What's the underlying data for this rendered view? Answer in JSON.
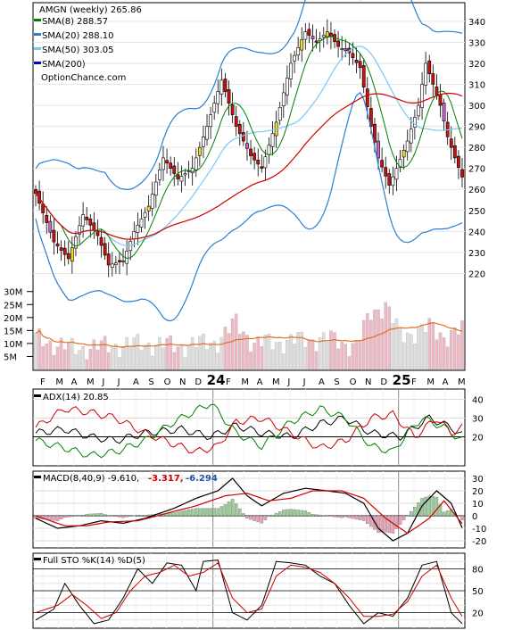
{
  "chart_data": [
    {
      "panel": "price",
      "type": "candlestick",
      "title": "AMGN (weekly) 265.86",
      "source_label": "OptionChance.com",
      "legend_placement": "top-left",
      "ylim": [
        210,
        348
      ],
      "y_ticks": [
        220,
        230,
        240,
        250,
        260,
        270,
        280,
        290,
        300,
        310,
        320,
        330,
        340
      ],
      "x_labels": [
        "F",
        "M",
        "A",
        "M",
        "J",
        "J",
        "A",
        "S",
        "O",
        "N",
        "D",
        "24",
        "F",
        "M",
        "A",
        "M",
        "J",
        "J",
        "A",
        "S",
        "O",
        "N",
        "D",
        "25",
        "F",
        "M",
        "A",
        "M"
      ],
      "weeks": 118,
      "close_key_points": [
        [
          0,
          258
        ],
        [
          5,
          235
        ],
        [
          9,
          227
        ],
        [
          13,
          248
        ],
        [
          17,
          238
        ],
        [
          20,
          224
        ],
        [
          24,
          226
        ],
        [
          27,
          240
        ],
        [
          31,
          252
        ],
        [
          35,
          275
        ],
        [
          39,
          265
        ],
        [
          43,
          270
        ],
        [
          47,
          290
        ],
        [
          51,
          312
        ],
        [
          55,
          290
        ],
        [
          59,
          276
        ],
        [
          62,
          270
        ],
        [
          66,
          292
        ],
        [
          70,
          320
        ],
        [
          74,
          335
        ],
        [
          77,
          330
        ],
        [
          80,
          335
        ],
        [
          83,
          328
        ],
        [
          86,
          325
        ],
        [
          89,
          318
        ],
        [
          92,
          290
        ],
        [
          94,
          275
        ],
        [
          97,
          262
        ],
        [
          99,
          270
        ],
        [
          102,
          283
        ],
        [
          105,
          300
        ],
        [
          107,
          320
        ],
        [
          109,
          310
        ],
        [
          111,
          300
        ],
        [
          113,
          285
        ],
        [
          115,
          275
        ],
        [
          117,
          265.86
        ]
      ],
      "series": [
        {
          "name": "SMA(8)",
          "value": "288.57",
          "color": "#008000"
        },
        {
          "name": "SMA(20)",
          "value": "288.10",
          "color": "#2a7fd4"
        },
        {
          "name": "SMA(50)",
          "value": "303.05",
          "color": "#7ec8ee"
        },
        {
          "name": "SMA(200)",
          "value": "",
          "color": "#0000cc"
        }
      ],
      "upper_band_label": "Bollinger"
    },
    {
      "panel": "volume",
      "type": "bar",
      "y_ticks": [
        "30M",
        "25M",
        "20M",
        "15M",
        "10M",
        "5M"
      ],
      "ylim": [
        0,
        33
      ],
      "key_points": [
        [
          0,
          12
        ],
        [
          10,
          8
        ],
        [
          20,
          9
        ],
        [
          30,
          10
        ],
        [
          40,
          9
        ],
        [
          50,
          11
        ],
        [
          55,
          18
        ],
        [
          60,
          10
        ],
        [
          70,
          11
        ],
        [
          80,
          12
        ],
        [
          88,
          9
        ],
        [
          92,
          22
        ],
        [
          96,
          25
        ],
        [
          100,
          13
        ],
        [
          108,
          16
        ],
        [
          112,
          13
        ],
        [
          117,
          15
        ]
      ],
      "average_line_color": "#e07020"
    },
    {
      "panel": "adx",
      "type": "line",
      "title": "ADX(14) 20.85",
      "ylim": [
        5,
        45
      ],
      "y_ticks": [
        40,
        30,
        20
      ],
      "series": [
        {
          "name": "ADX",
          "color": "#000000",
          "key_points": [
            [
              0,
              22
            ],
            [
              8,
              24
            ],
            [
              15,
              20
            ],
            [
              22,
              18
            ],
            [
              30,
              22
            ],
            [
              40,
              24
            ],
            [
              48,
              20
            ],
            [
              55,
              26
            ],
            [
              62,
              22
            ],
            [
              70,
              20
            ],
            [
              78,
              27
            ],
            [
              85,
              30
            ],
            [
              92,
              22
            ],
            [
              100,
              20
            ],
            [
              108,
              30
            ],
            [
              114,
              25
            ],
            [
              117,
              20.85
            ]
          ]
        },
        {
          "name": "+DI",
          "color": "#008000",
          "key_points": [
            [
              0,
              18
            ],
            [
              8,
              14
            ],
            [
              15,
              10
            ],
            [
              22,
              12
            ],
            [
              30,
              18
            ],
            [
              38,
              28
            ],
            [
              44,
              34
            ],
            [
              48,
              38
            ],
            [
              55,
              22
            ],
            [
              62,
              15
            ],
            [
              70,
              28
            ],
            [
              78,
              35
            ],
            [
              85,
              30
            ],
            [
              92,
              15
            ],
            [
              98,
              12
            ],
            [
              102,
              22
            ],
            [
              106,
              30
            ],
            [
              112,
              25
            ],
            [
              117,
              18
            ]
          ]
        },
        {
          "name": "-DI",
          "color": "#cc0000",
          "key_points": [
            [
              0,
              25
            ],
            [
              8,
              35
            ],
            [
              15,
              33
            ],
            [
              22,
              30
            ],
            [
              30,
              22
            ],
            [
              38,
              16
            ],
            [
              44,
              12
            ],
            [
              50,
              15
            ],
            [
              55,
              28
            ],
            [
              62,
              30
            ],
            [
              70,
              22
            ],
            [
              78,
              14
            ],
            [
              85,
              18
            ],
            [
              92,
              30
            ],
            [
              98,
              32
            ],
            [
              104,
              20
            ],
            [
              110,
              30
            ],
            [
              114,
              22
            ],
            [
              117,
              25
            ]
          ]
        }
      ]
    },
    {
      "panel": "macd",
      "type": "line+bar",
      "title": "MACD(8,40,9) -9.610,",
      "macd_value": "-3.317,",
      "signal_value": "-6.294",
      "ylim": [
        -25,
        35
      ],
      "y_ticks": [
        30,
        20,
        10,
        0,
        -10,
        -20
      ],
      "macd_key_points": [
        [
          0,
          -2
        ],
        [
          6,
          -10
        ],
        [
          12,
          -8
        ],
        [
          18,
          -4
        ],
        [
          24,
          -6
        ],
        [
          30,
          -2
        ],
        [
          38,
          6
        ],
        [
          44,
          14
        ],
        [
          50,
          20
        ],
        [
          54,
          30
        ],
        [
          58,
          16
        ],
        [
          62,
          8
        ],
        [
          68,
          18
        ],
        [
          74,
          22
        ],
        [
          80,
          20
        ],
        [
          85,
          18
        ],
        [
          90,
          10
        ],
        [
          94,
          -10
        ],
        [
          98,
          -20
        ],
        [
          102,
          -14
        ],
        [
          106,
          8
        ],
        [
          110,
          20
        ],
        [
          114,
          10
        ],
        [
          117,
          -9.61
        ]
      ],
      "signal_key_points": [
        [
          0,
          0
        ],
        [
          8,
          -8
        ],
        [
          14,
          -8
        ],
        [
          20,
          -5
        ],
        [
          28,
          -4
        ],
        [
          36,
          2
        ],
        [
          44,
          8
        ],
        [
          52,
          16
        ],
        [
          58,
          18
        ],
        [
          64,
          12
        ],
        [
          70,
          14
        ],
        [
          76,
          20
        ],
        [
          84,
          20
        ],
        [
          90,
          14
        ],
        [
          96,
          -2
        ],
        [
          102,
          -14
        ],
        [
          108,
          -2
        ],
        [
          112,
          12
        ],
        [
          117,
          -6.294
        ]
      ],
      "macd_color": "#000000",
      "signal_color": "#cc0000"
    },
    {
      "panel": "stochastic",
      "type": "line",
      "title": "Full STO %K(14) %D(5)",
      "ylim": [
        0,
        100
      ],
      "y_ticks": [
        80,
        50,
        20
      ],
      "series": [
        {
          "name": "%K",
          "color": "#000000",
          "key_points": [
            [
              0,
              10
            ],
            [
              5,
              25
            ],
            [
              8,
              60
            ],
            [
              12,
              30
            ],
            [
              16,
              5
            ],
            [
              20,
              10
            ],
            [
              24,
              40
            ],
            [
              28,
              80
            ],
            [
              32,
              60
            ],
            [
              36,
              88
            ],
            [
              40,
              85
            ],
            [
              44,
              50
            ],
            [
              46,
              90
            ],
            [
              50,
              92
            ],
            [
              54,
              20
            ],
            [
              58,
              10
            ],
            [
              62,
              30
            ],
            [
              66,
              90
            ],
            [
              70,
              88
            ],
            [
              74,
              85
            ],
            [
              78,
              70
            ],
            [
              82,
              60
            ],
            [
              86,
              30
            ],
            [
              90,
              5
            ],
            [
              94,
              20
            ],
            [
              98,
              15
            ],
            [
              102,
              40
            ],
            [
              106,
              85
            ],
            [
              110,
              90
            ],
            [
              114,
              20
            ],
            [
              117,
              5
            ]
          ]
        },
        {
          "name": "%D",
          "color": "#cc0000",
          "key_points": [
            [
              0,
              20
            ],
            [
              6,
              30
            ],
            [
              10,
              45
            ],
            [
              14,
              30
            ],
            [
              18,
              12
            ],
            [
              22,
              20
            ],
            [
              26,
              50
            ],
            [
              30,
              70
            ],
            [
              34,
              75
            ],
            [
              38,
              85
            ],
            [
              42,
              70
            ],
            [
              46,
              75
            ],
            [
              50,
              88
            ],
            [
              54,
              40
            ],
            [
              58,
              20
            ],
            [
              62,
              25
            ],
            [
              66,
              70
            ],
            [
              70,
              85
            ],
            [
              74,
              82
            ],
            [
              78,
              75
            ],
            [
              82,
              60
            ],
            [
              86,
              40
            ],
            [
              90,
              15
            ],
            [
              94,
              15
            ],
            [
              98,
              18
            ],
            [
              102,
              35
            ],
            [
              106,
              70
            ],
            [
              110,
              85
            ],
            [
              114,
              40
            ],
            [
              117,
              15
            ]
          ]
        }
      ]
    }
  ]
}
